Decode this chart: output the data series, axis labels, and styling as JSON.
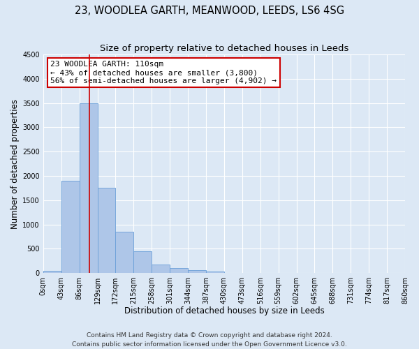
{
  "title": "23, WOODLEA GARTH, MEANWOOD, LEEDS, LS6 4SG",
  "subtitle": "Size of property relative to detached houses in Leeds",
  "xlabel": "Distribution of detached houses by size in Leeds",
  "ylabel": "Number of detached properties",
  "bin_labels": [
    "0sqm",
    "43sqm",
    "86sqm",
    "129sqm",
    "172sqm",
    "215sqm",
    "258sqm",
    "301sqm",
    "344sqm",
    "387sqm",
    "430sqm",
    "473sqm",
    "516sqm",
    "559sqm",
    "602sqm",
    "645sqm",
    "688sqm",
    "731sqm",
    "774sqm",
    "817sqm",
    "860sqm"
  ],
  "bin_edges": [
    0,
    43,
    86,
    129,
    172,
    215,
    258,
    301,
    344,
    387,
    430,
    473,
    516,
    559,
    602,
    645,
    688,
    731,
    774,
    817,
    860
  ],
  "bar_heights": [
    50,
    1900,
    3500,
    1750,
    850,
    450,
    175,
    100,
    55,
    30,
    0,
    0,
    0,
    0,
    0,
    0,
    0,
    0,
    0,
    0
  ],
  "bar_color": "#aec6e8",
  "bar_edge_color": "#6a9fd8",
  "vline_x": 110,
  "vline_color": "#cc0000",
  "ylim": [
    0,
    4500
  ],
  "yticks": [
    0,
    500,
    1000,
    1500,
    2000,
    2500,
    3000,
    3500,
    4000,
    4500
  ],
  "annotation_title": "23 WOODLEA GARTH: 110sqm",
  "annotation_line1": "← 43% of detached houses are smaller (3,800)",
  "annotation_line2": "56% of semi-detached houses are larger (4,902) →",
  "annotation_box_color": "#ffffff",
  "annotation_box_edge": "#cc0000",
  "footer_line1": "Contains HM Land Registry data © Crown copyright and database right 2024.",
  "footer_line2": "Contains public sector information licensed under the Open Government Licence v3.0.",
  "bg_color": "#dce8f5",
  "grid_color": "#ffffff",
  "title_fontsize": 10.5,
  "subtitle_fontsize": 9.5,
  "axis_label_fontsize": 8.5,
  "tick_fontsize": 7,
  "annotation_fontsize": 8,
  "footer_fontsize": 6.5
}
